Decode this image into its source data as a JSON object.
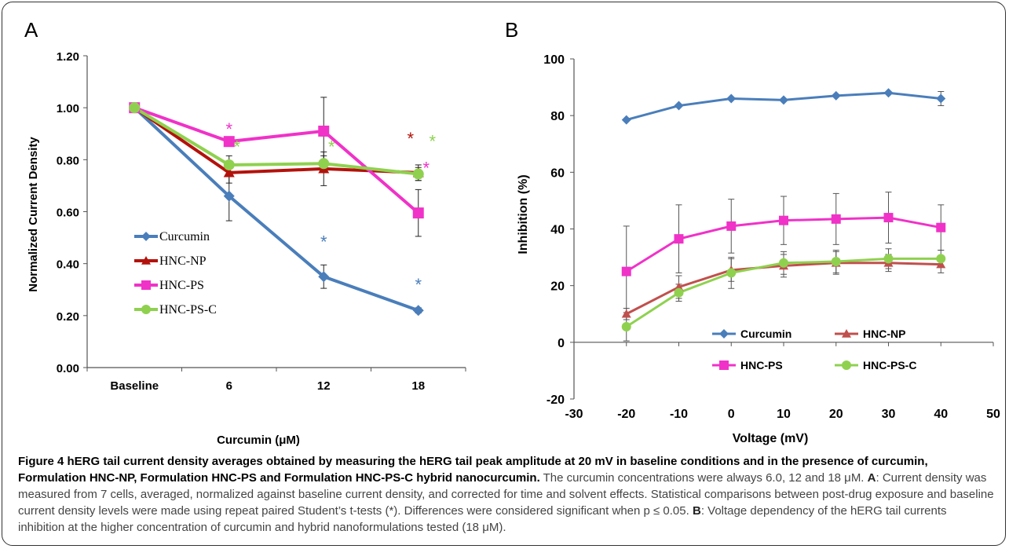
{
  "chart_data": [
    {
      "type": "line",
      "panel_label": "A",
      "xlabel": "Curcumin (μM)",
      "ylabel": "Normalized Current Density",
      "categories": [
        "Baseline",
        "6",
        "12",
        "18"
      ],
      "ylim": [
        0,
        1.2
      ],
      "yticks": [
        "0.00",
        "0.20",
        "0.40",
        "0.60",
        "0.80",
        "1.00",
        "1.20"
      ],
      "legend_position": "lower-left",
      "series": [
        {
          "name": "Curcumin",
          "color": "#4a7ebb",
          "marker": "diamond",
          "values": [
            1.0,
            0.66,
            0.35,
            0.22
          ],
          "err": [
            0,
            0.095,
            0.045,
            0.01
          ],
          "sig": [
            null,
            null,
            "*",
            "*"
          ]
        },
        {
          "name": "HNC-NP",
          "color": "#b3120c",
          "marker": "triangle",
          "values": [
            1.0,
            0.75,
            0.765,
            0.75
          ],
          "err": [
            0,
            0.04,
            0.065,
            0.03
          ],
          "sig": [
            null,
            null,
            null,
            "*"
          ]
        },
        {
          "name": "HNC-PS",
          "color": "#f032c8",
          "marker": "square",
          "values": [
            1.0,
            0.87,
            0.91,
            0.595
          ],
          "err": [
            0,
            0,
            0.13,
            0.09
          ],
          "sig": [
            null,
            "*",
            null,
            "*"
          ]
        },
        {
          "name": "HNC-PS-C",
          "color": "#8fd14f",
          "marker": "circle",
          "values": [
            1.0,
            0.78,
            0.785,
            0.745
          ],
          "err": [
            0,
            0.035,
            0.03,
            0.025
          ],
          "sig": [
            null,
            "*",
            "*",
            "*"
          ]
        }
      ]
    },
    {
      "type": "line",
      "panel_label": "B",
      "xlabel": "Voltage (mV)",
      "ylabel": "Inhibition (%)",
      "x": [
        -20,
        -10,
        0,
        10,
        20,
        30,
        40
      ],
      "xlim": [
        -30,
        50
      ],
      "ylim": [
        -20,
        100
      ],
      "xticks": [
        "-30",
        "-20",
        "-10",
        "0",
        "10",
        "20",
        "30",
        "40",
        "50"
      ],
      "yticks": [
        "-20",
        "0",
        "20",
        "40",
        "60",
        "80",
        "100"
      ],
      "legend_position": "bottom, two columns",
      "series": [
        {
          "name": "Curcumin",
          "color": "#4a7ebb",
          "marker": "diamond",
          "values": [
            78.5,
            83.5,
            86,
            85.5,
            87,
            88,
            86
          ],
          "err": [
            0,
            0,
            0,
            0,
            0,
            0,
            2.5
          ]
        },
        {
          "name": "HNC-NP",
          "color": "#c0504d",
          "marker": "triangle",
          "values": [
            10,
            19.5,
            25.5,
            27,
            28,
            28,
            27.5
          ],
          "err": [
            2,
            4,
            4,
            4,
            4,
            3,
            3
          ]
        },
        {
          "name": "HNC-PS",
          "color": "#f032c8",
          "marker": "square",
          "values": [
            25,
            36.5,
            41,
            43,
            43.5,
            44,
            40.5
          ],
          "err": [
            16,
            12,
            9.5,
            8.5,
            9,
            9,
            8
          ]
        },
        {
          "name": "HNC-PS-C",
          "color": "#8fd14f",
          "marker": "circle",
          "values": [
            5.5,
            17.5,
            24.5,
            28,
            28.5,
            29.5,
            29.5
          ],
          "err": [
            5,
            3,
            5.5,
            4,
            4,
            3.5,
            3
          ]
        }
      ]
    }
  ],
  "caption": {
    "title": "Figure 4 hERG tail current density averages obtained by measuring the hERG tail peak amplitude at 20 mV in baseline conditions and in the presence of curcumin, Formulation HNC-NP, Formulation HNC-PS and Formulation HNC-PS-C hybrid nanocurcumin.",
    "text1": " The curcumin concentrations were always 6.0, 12 and 18 μM. ",
    "label_a": "A",
    "text_a": ": Current density was measured from 7 cells, averaged, normalized against baseline current density, and corrected for time and solvent effects. Statistical comparisons between post-drug exposure and baseline current density levels were made using repeat paired Student’s t-tests (*). Differences were considered significant when p ≤ 0.05. ",
    "label_b": "B",
    "text_b": ": Voltage dependency of the hERG tail currents inhibition at the higher concentration of curcumin and hybrid nanoformulations tested (18 μM)."
  }
}
